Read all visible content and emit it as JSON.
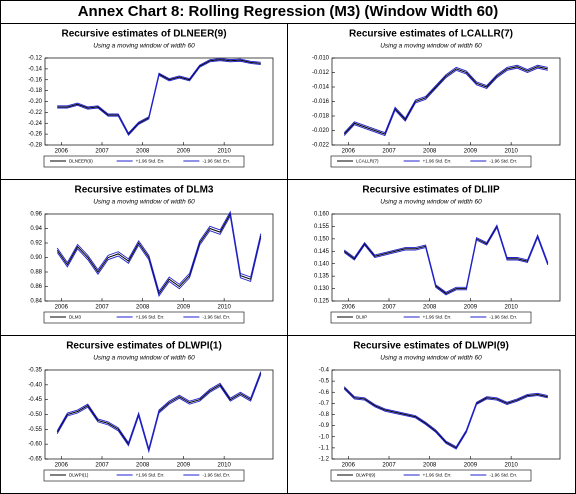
{
  "title": "Annex Chart 8: Rolling Regression (M3) (Window Width 60)",
  "chart_data": [
    {
      "type": "line",
      "title": "Recursive estimates of DLNEER(9)",
      "subtitle": "Using a moving window of width 60",
      "x": [
        2005.9,
        2006.15,
        2006.4,
        2006.65,
        2006.9,
        2007.15,
        2007.4,
        2007.65,
        2007.9,
        2008.15,
        2008.4,
        2008.65,
        2008.9,
        2009.15,
        2009.4,
        2009.65,
        2009.9,
        2010.15,
        2010.4,
        2010.65,
        2010.9
      ],
      "xlim": [
        2005.6,
        2011.2
      ],
      "xticks": [
        2006,
        2007,
        2008,
        2009,
        2010
      ],
      "ylim": [
        -0.28,
        -0.12
      ],
      "yticks": [
        -0.12,
        -0.14,
        -0.16,
        -0.18,
        {
          "value": -0.2,
          "label": "-0.20"
        },
        -0.22,
        -0.24,
        -0.26,
        -0.28
      ],
      "series": [
        {
          "name": "DLNEER(9)",
          "color": "#000000",
          "values": [
            -0.21,
            -0.21,
            -0.205,
            -0.212,
            -0.21,
            -0.225,
            -0.225,
            -0.26,
            -0.24,
            -0.23,
            -0.15,
            -0.16,
            -0.155,
            -0.16,
            -0.135,
            -0.125,
            -0.123,
            -0.125,
            -0.124,
            -0.128,
            -0.13
          ]
        },
        {
          "name": "+1.96 Std. Err.",
          "color": "#2222cc",
          "values": [
            -0.208,
            -0.208,
            -0.203,
            -0.21,
            -0.208,
            -0.223,
            -0.223,
            -0.258,
            -0.238,
            -0.228,
            -0.148,
            -0.158,
            -0.153,
            -0.158,
            -0.133,
            -0.123,
            -0.121,
            -0.123,
            -0.122,
            -0.126,
            -0.128
          ]
        },
        {
          "name": "-1.96 Std. Err.",
          "color": "#2222cc",
          "values": [
            -0.212,
            -0.212,
            -0.207,
            -0.214,
            -0.212,
            -0.227,
            -0.227,
            -0.262,
            -0.242,
            -0.232,
            -0.152,
            -0.162,
            -0.157,
            -0.162,
            -0.137,
            -0.127,
            -0.125,
            -0.127,
            -0.126,
            -0.13,
            -0.132
          ]
        }
      ]
    },
    {
      "type": "line",
      "title": "Recursive estimates of LCALLR(7)",
      "subtitle": "Using a moving window of width 60",
      "x": [
        2005.9,
        2006.15,
        2006.4,
        2006.65,
        2006.9,
        2007.15,
        2007.4,
        2007.65,
        2007.9,
        2008.15,
        2008.4,
        2008.65,
        2008.9,
        2009.15,
        2009.4,
        2009.65,
        2009.9,
        2010.15,
        2010.4,
        2010.65,
        2010.9
      ],
      "xlim": [
        2005.6,
        2011.2
      ],
      "xticks": [
        2006,
        2007,
        2008,
        2009,
        2010
      ],
      "ylim": [
        -0.022,
        -0.01
      ],
      "yticks": [
        {
          "value": -0.01,
          "label": "-0.010"
        },
        -0.012,
        -0.014,
        -0.016,
        -0.018,
        {
          "value": -0.02,
          "label": "-0.020"
        },
        -0.022
      ],
      "series": [
        {
          "name": "LCALLR(7)",
          "color": "#000000",
          "values": [
            -0.0205,
            -0.019,
            -0.0195,
            -0.02,
            -0.0205,
            -0.017,
            -0.0185,
            -0.016,
            -0.0155,
            -0.014,
            -0.0125,
            -0.0115,
            -0.012,
            -0.0135,
            -0.014,
            -0.0125,
            -0.0115,
            -0.0112,
            -0.0118,
            -0.0112,
            -0.0115
          ]
        },
        {
          "name": "+1.96 Std. Err.",
          "color": "#2222cc",
          "values": [
            -0.0203,
            -0.0188,
            -0.0193,
            -0.0198,
            -0.0203,
            -0.0168,
            -0.0183,
            -0.0158,
            -0.0153,
            -0.0138,
            -0.0123,
            -0.0113,
            -0.0118,
            -0.0133,
            -0.0138,
            -0.0123,
            -0.0113,
            -0.011,
            -0.0116,
            -0.011,
            -0.0113
          ]
        },
        {
          "name": "-1.96 Std. Err.",
          "color": "#2222cc",
          "values": [
            -0.0207,
            -0.0192,
            -0.0197,
            -0.0202,
            -0.0207,
            -0.0172,
            -0.0187,
            -0.0162,
            -0.0157,
            -0.0142,
            -0.0127,
            -0.0117,
            -0.0122,
            -0.0137,
            -0.0142,
            -0.0127,
            -0.0117,
            -0.0114,
            -0.012,
            -0.0114,
            -0.0117
          ]
        }
      ]
    },
    {
      "type": "line",
      "title": "Recursive estimates of DLM3",
      "subtitle": "Using a moving window of width 60",
      "x": [
        2005.9,
        2006.15,
        2006.4,
        2006.65,
        2006.9,
        2007.15,
        2007.4,
        2007.65,
        2007.9,
        2008.15,
        2008.4,
        2008.65,
        2008.9,
        2009.15,
        2009.4,
        2009.65,
        2009.9,
        2010.15,
        2010.4,
        2010.65,
        2010.9
      ],
      "xlim": [
        2005.6,
        2011.2
      ],
      "xticks": [
        2006,
        2007,
        2008,
        2009,
        2010
      ],
      "ylim": [
        0.84,
        0.96
      ],
      "yticks": [
        0.96,
        0.94,
        0.92,
        {
          "value": 0.9,
          "label": "0.90"
        },
        0.88,
        0.86,
        0.84
      ],
      "series": [
        {
          "name": "DLM3",
          "color": "#000000",
          "values": [
            0.91,
            0.89,
            0.915,
            0.9,
            0.88,
            0.9,
            0.905,
            0.895,
            0.92,
            0.9,
            0.85,
            0.87,
            0.86,
            0.875,
            0.92,
            0.94,
            0.935,
            0.96,
            0.875,
            0.87,
            0.93
          ]
        },
        {
          "name": "+1.96 Std. Err.",
          "color": "#2222cc",
          "values": [
            0.913,
            0.893,
            0.918,
            0.903,
            0.883,
            0.903,
            0.908,
            0.898,
            0.923,
            0.903,
            0.853,
            0.873,
            0.863,
            0.878,
            0.923,
            0.943,
            0.938,
            0.963,
            0.878,
            0.873,
            0.933
          ]
        },
        {
          "name": "-1.96 Std. Err.",
          "color": "#2222cc",
          "values": [
            0.907,
            0.887,
            0.912,
            0.897,
            0.877,
            0.897,
            0.902,
            0.892,
            0.917,
            0.897,
            0.847,
            0.867,
            0.857,
            0.872,
            0.917,
            0.937,
            0.932,
            0.957,
            0.872,
            0.867,
            0.927
          ]
        }
      ]
    },
    {
      "type": "line",
      "title": "Recursive estimates of DLIIP",
      "subtitle": "Using a moving window of width 60",
      "x": [
        2005.9,
        2006.15,
        2006.4,
        2006.65,
        2006.9,
        2007.15,
        2007.4,
        2007.65,
        2007.9,
        2008.15,
        2008.4,
        2008.65,
        2008.9,
        2009.15,
        2009.4,
        2009.65,
        2009.9,
        2010.15,
        2010.4,
        2010.65,
        2010.9
      ],
      "xlim": [
        2005.6,
        2011.2
      ],
      "xticks": [
        2006,
        2007,
        2008,
        2009,
        2010
      ],
      "ylim": [
        0.125,
        0.16
      ],
      "yticks": [
        {
          "value": 0.16,
          "label": "0.160"
        },
        0.155,
        {
          "value": 0.15,
          "label": "0.150"
        },
        0.145,
        {
          "value": 0.14,
          "label": "0.140"
        },
        0.135,
        {
          "value": 0.13,
          "label": "0.130"
        },
        0.125
      ],
      "series": [
        {
          "name": "DLIIP",
          "color": "#000000",
          "values": [
            0.145,
            0.142,
            0.148,
            0.143,
            0.144,
            0.145,
            0.146,
            0.146,
            0.147,
            0.131,
            0.128,
            0.13,
            0.13,
            0.15,
            0.148,
            0.155,
            0.142,
            0.142,
            0.141,
            0.151,
            0.14
          ]
        },
        {
          "name": "+1.96 Std. Err.",
          "color": "#2222cc",
          "values": [
            0.1455,
            0.1425,
            0.1485,
            0.1435,
            0.1445,
            0.1455,
            0.1465,
            0.1465,
            0.1475,
            0.1315,
            0.1285,
            0.1305,
            0.1305,
            0.1505,
            0.1485,
            0.1555,
            0.1425,
            0.1425,
            0.1415,
            0.1515,
            0.1405
          ]
        },
        {
          "name": "-1.96 Std. Err.",
          "color": "#2222cc",
          "values": [
            0.1445,
            0.1415,
            0.1475,
            0.1425,
            0.1435,
            0.1445,
            0.1455,
            0.1455,
            0.1465,
            0.1305,
            0.1275,
            0.1295,
            0.1295,
            0.1495,
            0.1475,
            0.1545,
            0.1415,
            0.1415,
            0.1405,
            0.1505,
            0.1395
          ]
        }
      ]
    },
    {
      "type": "line",
      "title": "Recursive estimates of DLWPI(1)",
      "subtitle": "Using a moving window of width 60",
      "x": [
        2005.9,
        2006.15,
        2006.4,
        2006.65,
        2006.9,
        2007.15,
        2007.4,
        2007.65,
        2007.9,
        2008.15,
        2008.4,
        2008.65,
        2008.9,
        2009.15,
        2009.4,
        2009.65,
        2009.9,
        2010.15,
        2010.4,
        2010.65,
        2010.9
      ],
      "xlim": [
        2005.6,
        2011.2
      ],
      "xticks": [
        2006,
        2007,
        2008,
        2009,
        2010
      ],
      "ylim": [
        -0.65,
        -0.35
      ],
      "yticks": [
        -0.35,
        {
          "value": -0.4,
          "label": "-0.40"
        },
        -0.45,
        {
          "value": -0.5,
          "label": "-0.50"
        },
        -0.55,
        {
          "value": -0.6,
          "label": "-0.60"
        },
        -0.65
      ],
      "series": [
        {
          "name": "DLWPI(1)",
          "color": "#000000",
          "values": [
            -0.56,
            -0.5,
            -0.49,
            -0.47,
            -0.52,
            -0.53,
            -0.55,
            -0.6,
            -0.5,
            -0.62,
            -0.49,
            -0.46,
            -0.44,
            -0.46,
            -0.45,
            -0.42,
            -0.4,
            -0.45,
            -0.43,
            -0.45,
            -0.36
          ]
        },
        {
          "name": "+1.96 Std. Err.",
          "color": "#2222cc",
          "values": [
            -0.555,
            -0.495,
            -0.485,
            -0.465,
            -0.515,
            -0.525,
            -0.545,
            -0.595,
            -0.495,
            -0.615,
            -0.485,
            -0.455,
            -0.435,
            -0.455,
            -0.445,
            -0.415,
            -0.395,
            -0.445,
            -0.425,
            -0.445,
            -0.355
          ]
        },
        {
          "name": "-1.96 Std. Err.",
          "color": "#2222cc",
          "values": [
            -0.565,
            -0.505,
            -0.495,
            -0.475,
            -0.525,
            -0.535,
            -0.555,
            -0.605,
            -0.505,
            -0.625,
            -0.495,
            -0.465,
            -0.445,
            -0.465,
            -0.455,
            -0.425,
            -0.405,
            -0.455,
            -0.435,
            -0.455,
            -0.365
          ]
        }
      ]
    },
    {
      "type": "line",
      "title": "Recursive estimates of DLWPI(9)",
      "subtitle": "Using a moving window of width 60",
      "x": [
        2005.9,
        2006.15,
        2006.4,
        2006.65,
        2006.9,
        2007.15,
        2007.4,
        2007.65,
        2007.9,
        2008.15,
        2008.4,
        2008.65,
        2008.9,
        2009.15,
        2009.4,
        2009.65,
        2009.9,
        2010.15,
        2010.4,
        2010.65,
        2010.9
      ],
      "xlim": [
        2005.6,
        2011.2
      ],
      "xticks": [
        2006,
        2007,
        2008,
        2009,
        2010
      ],
      "ylim": [
        -1.2,
        -0.4
      ],
      "yticks": [
        -0.4,
        -0.5,
        -0.6,
        -0.7,
        -0.8,
        -0.9,
        {
          "value": -1,
          "label": "-1.0"
        },
        -1.1,
        -1.2
      ],
      "series": [
        {
          "name": "DLWPI(9)",
          "color": "#000000",
          "values": [
            -0.56,
            -0.65,
            -0.66,
            -0.72,
            -0.76,
            -0.78,
            -0.8,
            -0.82,
            -0.88,
            -0.95,
            -1.05,
            -1.1,
            -0.95,
            -0.7,
            -0.65,
            -0.66,
            -0.7,
            -0.67,
            -0.63,
            -0.62,
            -0.64
          ]
        },
        {
          "name": "+1.96 Std. Err.",
          "color": "#2222cc",
          "values": [
            -0.55,
            -0.64,
            -0.65,
            -0.71,
            -0.75,
            -0.77,
            -0.79,
            -0.81,
            -0.87,
            -0.94,
            -1.04,
            -1.09,
            -0.94,
            -0.69,
            -0.64,
            -0.65,
            -0.69,
            -0.66,
            -0.62,
            -0.61,
            -0.63
          ]
        },
        {
          "name": "-1.96 Std. Err.",
          "color": "#2222cc",
          "values": [
            -0.57,
            -0.66,
            -0.67,
            -0.73,
            -0.77,
            -0.79,
            -0.81,
            -0.83,
            -0.89,
            -0.96,
            -1.06,
            -1.11,
            -0.96,
            -0.71,
            -0.66,
            -0.67,
            -0.71,
            -0.68,
            -0.64,
            -0.63,
            -0.65
          ]
        }
      ]
    }
  ]
}
